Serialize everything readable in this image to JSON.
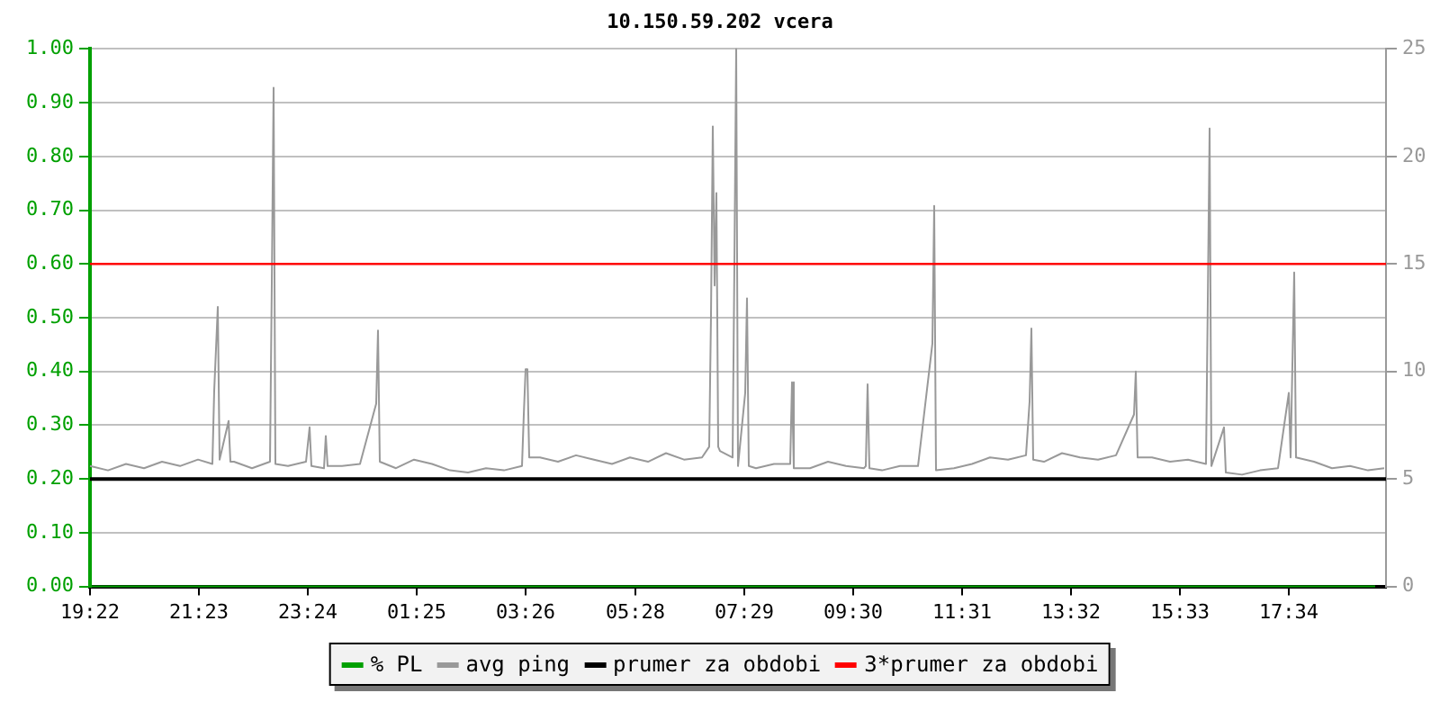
{
  "chart_data": {
    "type": "line",
    "title": "10.150.59.202 vcera",
    "xlim": [
      "--01-01T19:22",
      "--01-02T19:22"
    ],
    "xticks": [
      {
        "value": "--01-01T19:22",
        "label": "19:22"
      },
      {
        "value": "--01-01T21:23",
        "label": "21:23"
      },
      {
        "value": "--01-01T23:24",
        "label": "23:24"
      },
      {
        "value": "--01-02T01:25",
        "label": "01:25"
      },
      {
        "value": "--01-02T03:26",
        "label": "03:26"
      },
      {
        "value": "--01-02T05:28",
        "label": "05:28"
      },
      {
        "value": "--01-02T07:29",
        "label": "07:29"
      },
      {
        "value": "--01-02T09:30",
        "label": "09:30"
      },
      {
        "value": "--01-02T11:31",
        "label": "11:31"
      },
      {
        "value": "--01-02T13:32",
        "label": "13:32"
      },
      {
        "value": "--01-02T15:33",
        "label": "15:33"
      },
      {
        "value": "--01-02T17:34",
        "label": "17:34"
      }
    ],
    "ylim": [
      0,
      1
    ],
    "yticks": [
      {
        "value": 0,
        "label": "0.00"
      },
      {
        "value": 0.1,
        "label": "0.10"
      },
      {
        "value": 0.2,
        "label": "0.20"
      },
      {
        "value": 0.3,
        "label": "0.30"
      },
      {
        "value": 0.4,
        "label": "0.40"
      },
      {
        "value": 0.5,
        "label": "0.50"
      },
      {
        "value": 0.6,
        "label": "0.60"
      },
      {
        "value": 0.7,
        "label": "0.70"
      },
      {
        "value": 0.8,
        "label": "0.80"
      },
      {
        "value": 0.9,
        "label": "0.90"
      },
      {
        "value": 1,
        "label": "1.00"
      }
    ],
    "y2lim": [
      0,
      25
    ],
    "y2ticks": [
      0,
      5,
      10,
      15,
      20,
      25
    ],
    "grid": true,
    "legend": "bottom",
    "marker": "none",
    "line_style": "solid",
    "series": [
      {
        "name": "% PL",
        "color": "#00a000",
        "x": [
          "--01-01T19:22",
          "--01-02T19:10"
        ],
        "values": [
          0,
          0
        ]
      },
      {
        "name": "avg ping",
        "color": "#999999",
        "axis": "y2",
        "x": [
          "--01-01T19:22",
          "--01-01T19:42",
          "--01-01T20:02",
          "--01-01T20:22",
          "--01-01T20:42",
          "--01-01T21:02",
          "--01-01T21:22",
          "--01-01T21:38",
          "--01-01T21:40",
          "--01-01T21:44",
          "--01-01T21:46",
          "--01-01T21:56",
          "--01-01T21:58",
          "--01-01T22:02",
          "--01-01T22:22",
          "--01-01T22:42",
          "--01-01T22:44",
          "--01-01T22:46",
          "--01-01T22:48",
          "--01-01T23:02",
          "--01-01T23:22",
          "--01-01T23:26",
          "--01-01T23:28",
          "--01-01T23:42",
          "--01-01T23:44",
          "--01-01T23:46",
          "--01-02T00:02",
          "--01-02T00:22",
          "--01-02T00:40",
          "--01-02T00:42",
          "--01-02T00:44",
          "--01-02T01:02",
          "--01-02T01:22",
          "--01-02T01:42",
          "--01-02T02:02",
          "--01-02T02:22",
          "--01-02T02:42",
          "--01-02T03:02",
          "--01-02T03:22",
          "--01-02T03:24",
          "--01-02T03:26",
          "--01-02T03:28",
          "--01-02T03:30",
          "--01-02T03:42",
          "--01-02T04:02",
          "--01-02T04:22",
          "--01-02T04:42",
          "--01-02T05:02",
          "--01-02T05:22",
          "--01-02T05:42",
          "--01-02T06:02",
          "--01-02T06:22",
          "--01-02T06:42",
          "--01-02T06:50",
          "--01-02T06:52",
          "--01-02T06:54",
          "--01-02T06:56",
          "--01-02T06:58",
          "--01-02T07:00",
          "--01-02T07:02",
          "--01-02T07:16",
          "--01-02T07:18",
          "--01-02T07:20",
          "--01-02T07:22",
          "--01-02T07:30",
          "--01-02T07:32",
          "--01-02T07:34",
          "--01-02T07:42",
          "--01-02T08:02",
          "--01-02T08:20",
          "--01-02T08:22",
          "--01-02T08:24",
          "--01-02T08:42",
          "--01-02T09:02",
          "--01-02T09:22",
          "--01-02T09:42",
          "--01-02T09:44",
          "--01-02T09:46",
          "--01-02T09:48",
          "--01-02T10:02",
          "--01-02T10:22",
          "--01-02T10:42",
          "--01-02T10:58",
          "--01-02T11:00",
          "--01-02T11:02",
          "--01-02T11:22",
          "--01-02T11:42",
          "--01-02T12:02",
          "--01-02T12:22",
          "--01-02T12:42",
          "--01-02T12:46",
          "--01-02T12:48",
          "--01-02T12:50",
          "--01-02T13:02",
          "--01-02T13:22",
          "--01-02T13:42",
          "--01-02T14:02",
          "--01-02T14:22",
          "--01-02T14:42",
          "--01-02T14:44",
          "--01-02T14:46",
          "--01-02T15:02",
          "--01-02T15:22",
          "--01-02T15:42",
          "--01-02T16:02",
          "--01-02T16:04",
          "--01-02T16:06",
          "--01-02T16:08",
          "--01-02T16:22",
          "--01-02T16:24",
          "--01-02T16:42",
          "--01-02T17:02",
          "--01-02T17:22",
          "--01-02T17:34",
          "--01-02T17:36",
          "--01-02T17:38",
          "--01-02T17:40",
          "--01-02T17:42",
          "--01-02T18:02",
          "--01-02T18:22",
          "--01-02T18:42",
          "--01-02T19:02",
          "--01-02T19:20"
        ],
        "values": [
          5.6,
          5.4,
          5.7,
          5.5,
          5.8,
          5.6,
          5.9,
          5.7,
          9.1,
          13.0,
          5.9,
          7.7,
          5.8,
          5.8,
          5.5,
          5.8,
          14.1,
          23.2,
          5.7,
          5.6,
          5.8,
          7.4,
          5.6,
          5.5,
          7.0,
          5.6,
          5.6,
          5.7,
          8.5,
          11.9,
          5.8,
          5.5,
          5.9,
          5.7,
          5.4,
          5.3,
          5.5,
          5.4,
          5.6,
          8.0,
          10.1,
          10.1,
          6.0,
          6.0,
          5.8,
          6.1,
          5.9,
          5.7,
          6.0,
          5.8,
          6.2,
          5.9,
          6.0,
          6.5,
          12.6,
          21.4,
          14.0,
          18.3,
          6.5,
          6.3,
          6.0,
          15.0,
          25.0,
          5.6,
          9.0,
          13.4,
          5.6,
          5.5,
          5.7,
          5.7,
          9.5,
          5.5,
          5.5,
          5.8,
          5.6,
          5.5,
          5.6,
          9.4,
          5.5,
          5.4,
          5.6,
          5.6,
          11.3,
          17.7,
          5.4,
          5.5,
          5.7,
          6.0,
          5.9,
          6.1,
          8.6,
          12.0,
          5.9,
          5.8,
          6.2,
          6.0,
          5.9,
          6.1,
          8.0,
          10.0,
          6.0,
          6.0,
          5.8,
          5.9,
          5.7,
          13.3,
          21.3,
          5.6,
          7.4,
          5.3,
          5.2,
          5.4,
          5.5,
          9.0,
          6.0,
          10.3,
          14.6,
          6.0,
          5.8,
          5.5,
          5.6,
          5.4,
          5.5
        ]
      }
    ],
    "ref_lines": [
      {
        "axis": "y",
        "value": 0.2,
        "label": "prumer za obdobi",
        "color": "#000000"
      },
      {
        "axis": "y",
        "value": 0.6,
        "label": "3*prumer za obdobi",
        "color": "#ff0000"
      }
    ]
  }
}
